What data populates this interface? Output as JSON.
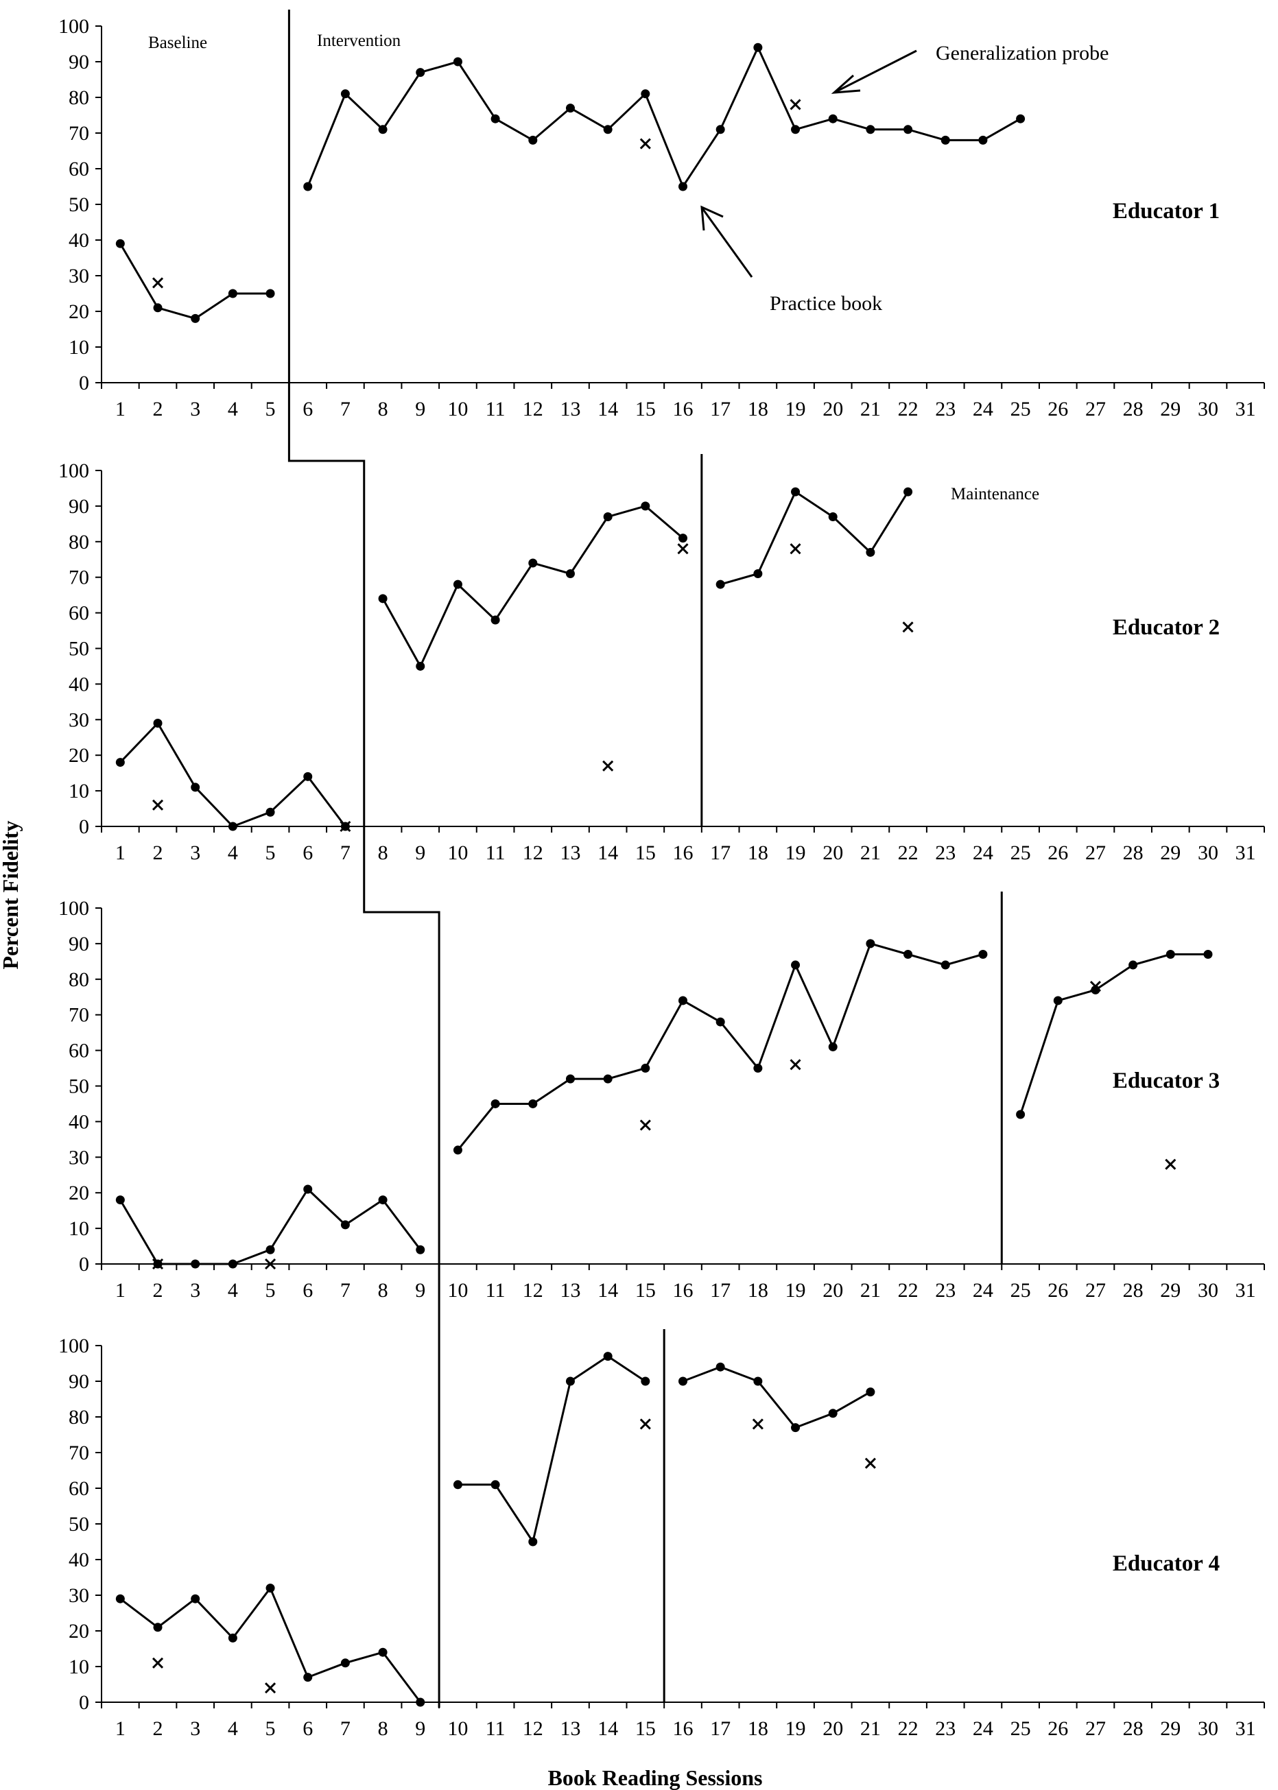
{
  "chart_data": {
    "type": "line",
    "xlabel": "Book Reading Sessions",
    "ylabel": "Percent Fidelity",
    "x_ticks": [
      1,
      2,
      3,
      4,
      5,
      6,
      7,
      8,
      9,
      10,
      11,
      12,
      13,
      14,
      15,
      16,
      17,
      18,
      19,
      20,
      21,
      22,
      23,
      24,
      25,
      26,
      27,
      28,
      29,
      30,
      31
    ],
    "y_ticks": [
      0,
      10,
      20,
      30,
      40,
      50,
      60,
      70,
      80,
      90,
      100
    ],
    "xlim": [
      0.5,
      31.5
    ],
    "ylim": [
      0,
      100
    ],
    "grid": false,
    "legend": "none",
    "phase_labels": {
      "baseline": "Baseline",
      "intervention": "Intervention",
      "maintenance": "Maintenance"
    },
    "annotations": {
      "generalization": "Generalization probe",
      "practice": "Practice book"
    },
    "panels": [
      {
        "label": "Educator 1",
        "practice_segments": [
          [
            [
              1,
              39
            ],
            [
              2,
              21
            ],
            [
              3,
              18
            ],
            [
              4,
              25
            ],
            [
              5,
              25
            ]
          ],
          [
            [
              6,
              55
            ],
            [
              7,
              81
            ],
            [
              8,
              71
            ],
            [
              9,
              87
            ],
            [
              10,
              90
            ],
            [
              11,
              74
            ],
            [
              12,
              68
            ],
            [
              13,
              77
            ],
            [
              14,
              71
            ],
            [
              15,
              81
            ],
            [
              16,
              55
            ],
            [
              17,
              71
            ],
            [
              18,
              94
            ],
            [
              19,
              71
            ],
            [
              20,
              74
            ],
            [
              21,
              71
            ],
            [
              22,
              71
            ],
            [
              23,
              68
            ],
            [
              24,
              68
            ],
            [
              25,
              74
            ]
          ]
        ],
        "generalization_probes": [
          [
            2,
            28
          ],
          [
            15,
            67
          ],
          [
            19,
            78
          ]
        ],
        "phase_changes": [
          5.5
        ]
      },
      {
        "label": "Educator 2",
        "practice_segments": [
          [
            [
              1,
              18
            ],
            [
              2,
              29
            ],
            [
              3,
              11
            ],
            [
              4,
              0
            ],
            [
              5,
              4
            ],
            [
              6,
              14
            ],
            [
              7,
              0
            ]
          ],
          [
            [
              8,
              64
            ],
            [
              9,
              45
            ],
            [
              10,
              68
            ],
            [
              11,
              58
            ],
            [
              12,
              74
            ],
            [
              13,
              71
            ],
            [
              14,
              87
            ],
            [
              15,
              90
            ],
            [
              16,
              81
            ]
          ],
          [
            [
              17,
              68
            ],
            [
              18,
              71
            ],
            [
              19,
              94
            ],
            [
              20,
              87
            ],
            [
              21,
              77
            ],
            [
              22,
              94
            ]
          ]
        ],
        "generalization_probes": [
          [
            2,
            6
          ],
          [
            7,
            0
          ],
          [
            14,
            17
          ],
          [
            16,
            78
          ],
          [
            19,
            78
          ],
          [
            22,
            56
          ]
        ],
        "phase_changes": [
          7.5,
          16.5
        ]
      },
      {
        "label": "Educator 3",
        "practice_segments": [
          [
            [
              1,
              18
            ],
            [
              2,
              0
            ],
            [
              3,
              0
            ],
            [
              4,
              0
            ],
            [
              5,
              4
            ],
            [
              6,
              21
            ],
            [
              7,
              11
            ],
            [
              8,
              18
            ],
            [
              9,
              4
            ]
          ],
          [
            [
              10,
              32
            ],
            [
              11,
              45
            ],
            [
              12,
              45
            ],
            [
              13,
              52
            ],
            [
              14,
              52
            ],
            [
              15,
              55
            ],
            [
              16,
              74
            ],
            [
              17,
              68
            ],
            [
              18,
              55
            ],
            [
              19,
              84
            ],
            [
              20,
              61
            ],
            [
              21,
              90
            ],
            [
              22,
              87
            ],
            [
              23,
              84
            ],
            [
              24,
              87
            ]
          ],
          [
            [
              25,
              42
            ],
            [
              26,
              74
            ],
            [
              27,
              77
            ],
            [
              28,
              84
            ],
            [
              29,
              87
            ],
            [
              30,
              87
            ]
          ]
        ],
        "generalization_probes": [
          [
            2,
            0
          ],
          [
            5,
            0
          ],
          [
            15,
            39
          ],
          [
            19,
            56
          ],
          [
            27,
            78
          ],
          [
            29,
            28
          ]
        ],
        "phase_changes": [
          9.5,
          24.5
        ]
      },
      {
        "label": "Educator 4",
        "practice_segments": [
          [
            [
              1,
              29
            ],
            [
              2,
              21
            ],
            [
              3,
              29
            ],
            [
              4,
              18
            ],
            [
              5,
              32
            ],
            [
              6,
              7
            ],
            [
              7,
              11
            ],
            [
              8,
              14
            ],
            [
              9,
              0
            ]
          ],
          [
            [
              10,
              61
            ],
            [
              11,
              61
            ],
            [
              12,
              45
            ],
            [
              13,
              90
            ],
            [
              14,
              97
            ],
            [
              15,
              90
            ]
          ],
          [
            [
              16,
              90
            ],
            [
              17,
              94
            ],
            [
              18,
              90
            ],
            [
              19,
              77
            ],
            [
              20,
              81
            ],
            [
              21,
              87
            ]
          ]
        ],
        "generalization_probes": [
          [
            2,
            11
          ],
          [
            5,
            4
          ],
          [
            15,
            78
          ],
          [
            18,
            78
          ],
          [
            21,
            67
          ]
        ],
        "phase_changes": [
          9.5,
          15.5
        ]
      }
    ]
  }
}
